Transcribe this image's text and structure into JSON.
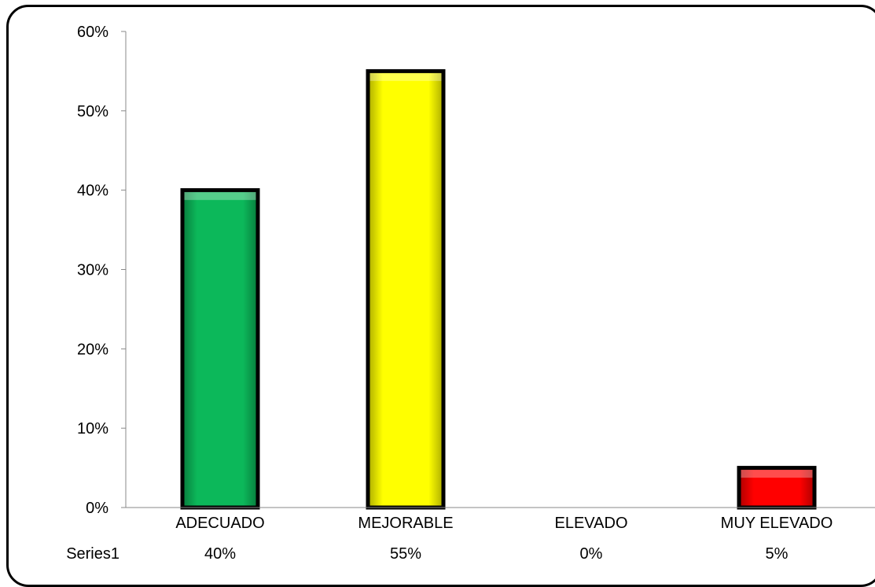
{
  "chart_data": {
    "type": "bar",
    "categories": [
      "ADECUADO",
      "MEJORABLE",
      "ELEVADO",
      "MUY ELEVADO"
    ],
    "series": [
      {
        "name": "Series1",
        "values": [
          0.4,
          0.55,
          0.0,
          0.05
        ],
        "value_labels": [
          "40%",
          "55%",
          "0%",
          "5%"
        ],
        "colors": [
          "#0cb85a",
          "#ffff00",
          "#ffff00",
          "#ff0000"
        ]
      }
    ],
    "y_ticks": [
      {
        "value": 0.0,
        "label": "0%"
      },
      {
        "value": 0.1,
        "label": "10%"
      },
      {
        "value": 0.2,
        "label": "20%"
      },
      {
        "value": 0.3,
        "label": "30%"
      },
      {
        "value": 0.4,
        "label": "40%"
      },
      {
        "value": 0.5,
        "label": "50%"
      },
      {
        "value": 0.6,
        "label": "60%"
      }
    ],
    "ylim": [
      0,
      0.6
    ],
    "grid": false,
    "legend": "data-table-row",
    "title": "",
    "xlabel": "",
    "ylabel": ""
  }
}
